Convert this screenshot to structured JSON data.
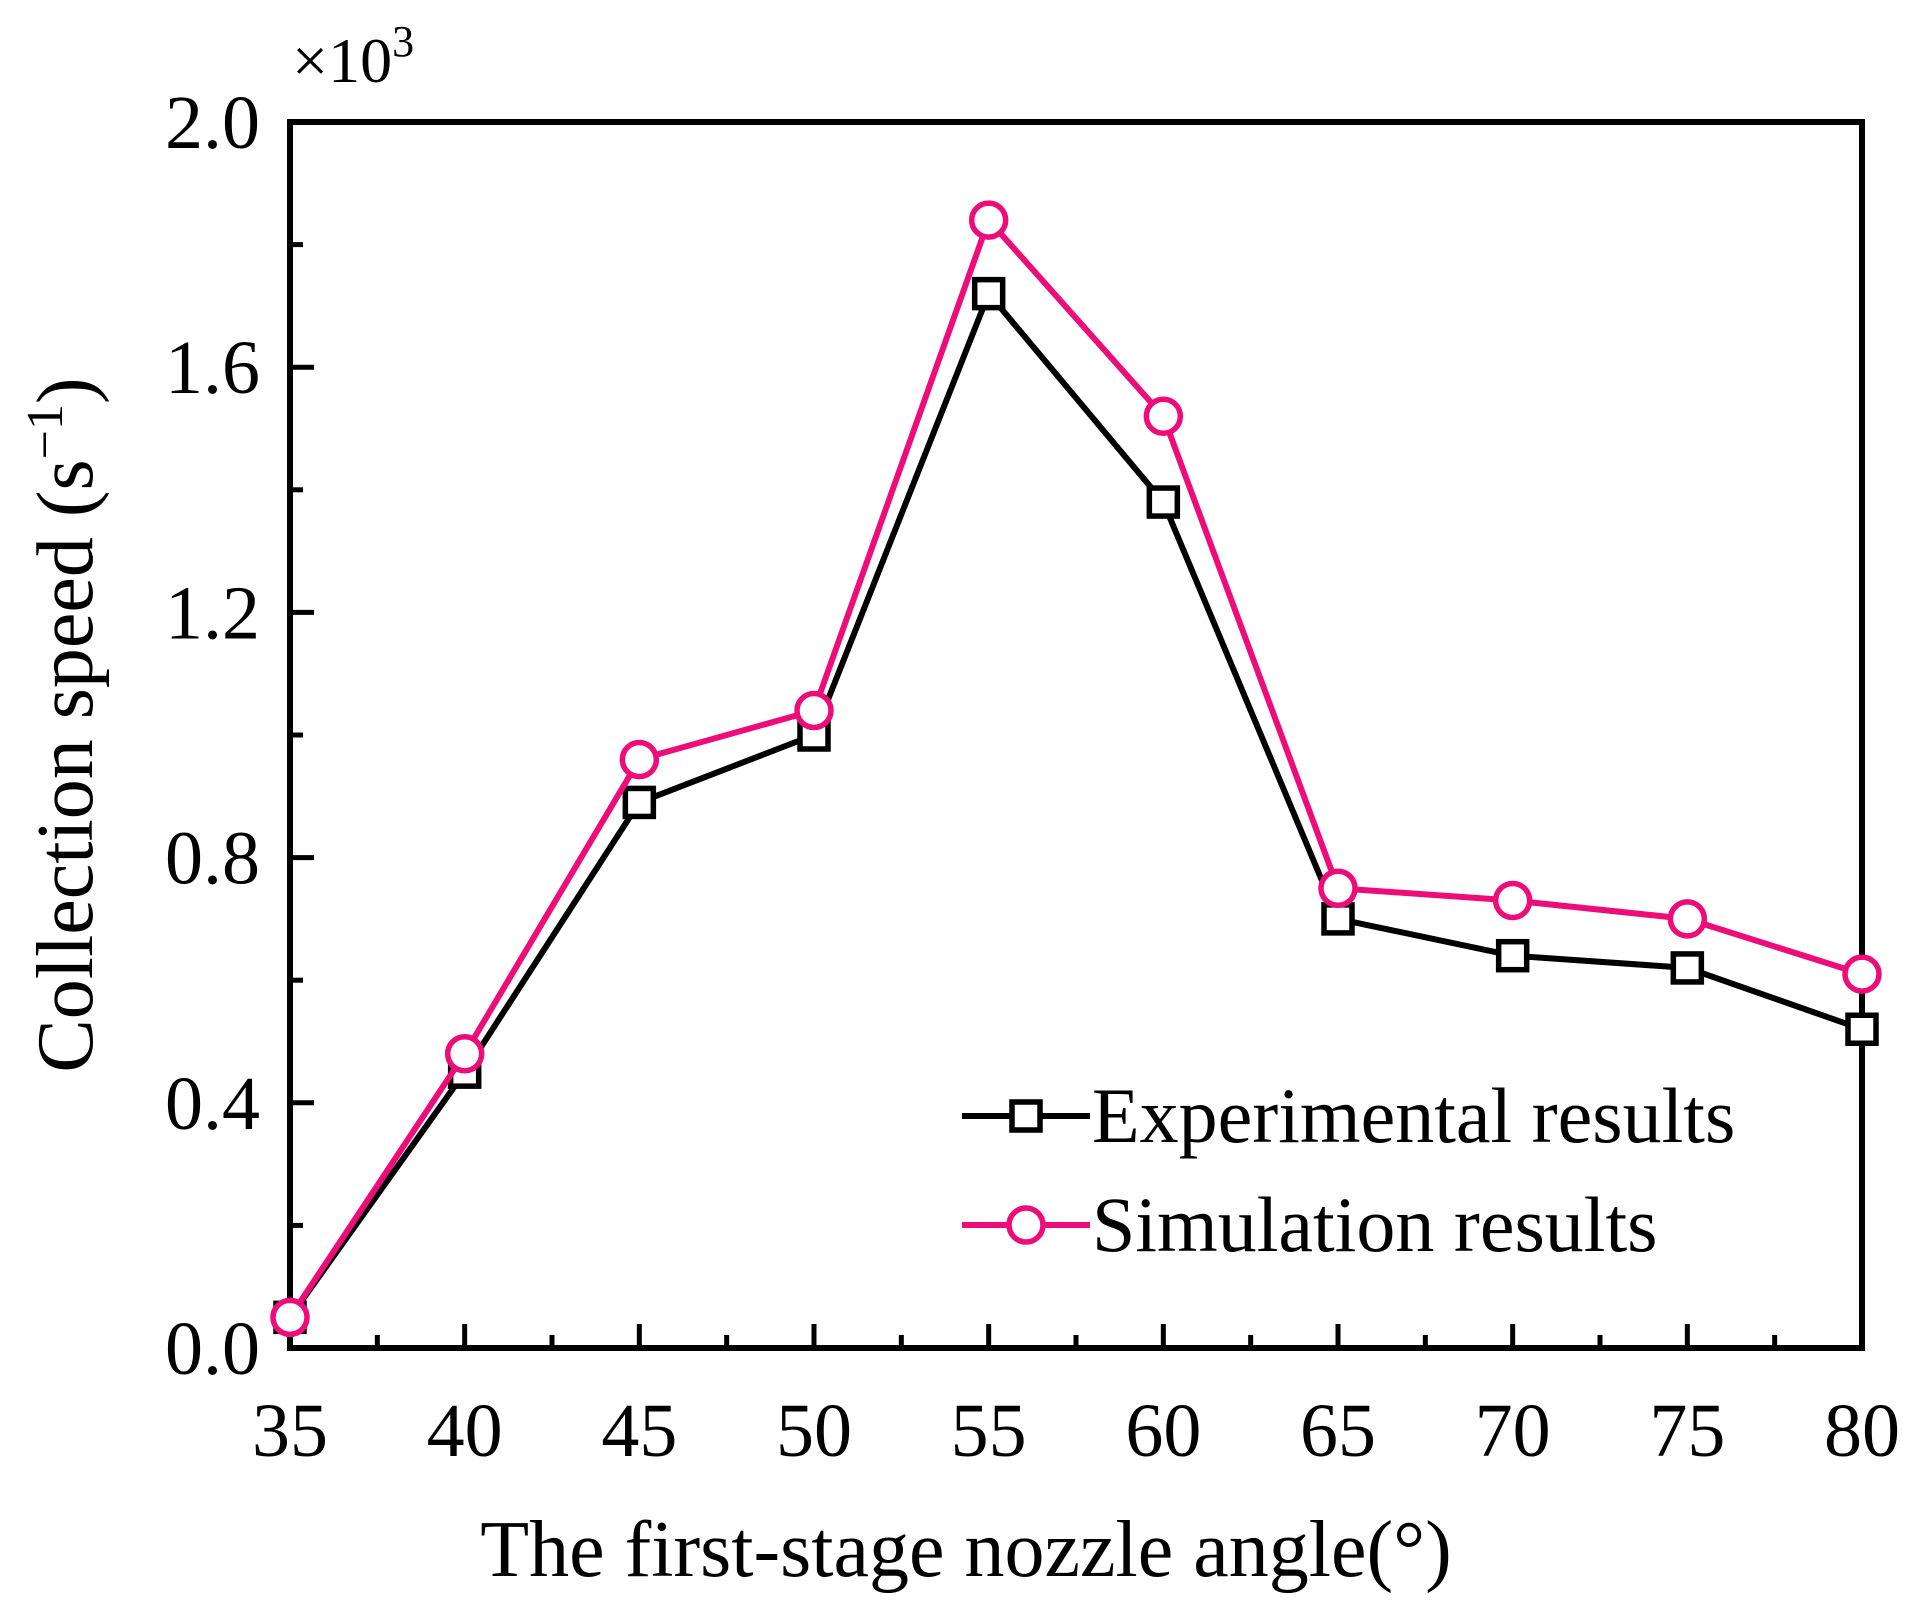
{
  "chart_data": {
    "type": "line",
    "title": "",
    "xlabel": "The first-stage nozzle angle(°)",
    "ylabel": "Collection speed (s",
    "ylabel_sup": "−1",
    "ylabel_close": ")",
    "y_multiplier": {
      "base": "×10",
      "exp": "3"
    },
    "xlim": [
      35,
      80
    ],
    "ylim": [
      0,
      2.0
    ],
    "x_ticks": [
      35,
      40,
      45,
      50,
      55,
      60,
      65,
      70,
      75,
      80
    ],
    "x_tick_labels": [
      "35",
      "40",
      "45",
      "50",
      "55",
      "60",
      "65",
      "70",
      "75",
      "80"
    ],
    "y_ticks": [
      0,
      0.4,
      0.8,
      1.2,
      1.6,
      2.0
    ],
    "y_tick_labels": [
      "0.0",
      "0.4",
      "0.8",
      "1.2",
      "1.6",
      "2.0"
    ],
    "x_minor_step": 2.5,
    "y_minor_step": 0.2,
    "grid": false,
    "legend_position": "lower-right",
    "x": [
      35,
      40,
      45,
      50,
      55,
      60,
      65,
      70,
      75,
      80
    ],
    "series": [
      {
        "name": "Experimental results",
        "color": "#000000",
        "marker": "square",
        "values": [
          0.05,
          0.45,
          0.89,
          1.0,
          1.72,
          1.38,
          0.7,
          0.64,
          0.62,
          0.52
        ]
      },
      {
        "name": "Simulation results",
        "color": "#ED0C7A",
        "marker": "circle",
        "values": [
          0.05,
          0.48,
          0.96,
          1.04,
          1.84,
          1.52,
          0.75,
          0.73,
          0.7,
          0.61
        ]
      }
    ]
  }
}
